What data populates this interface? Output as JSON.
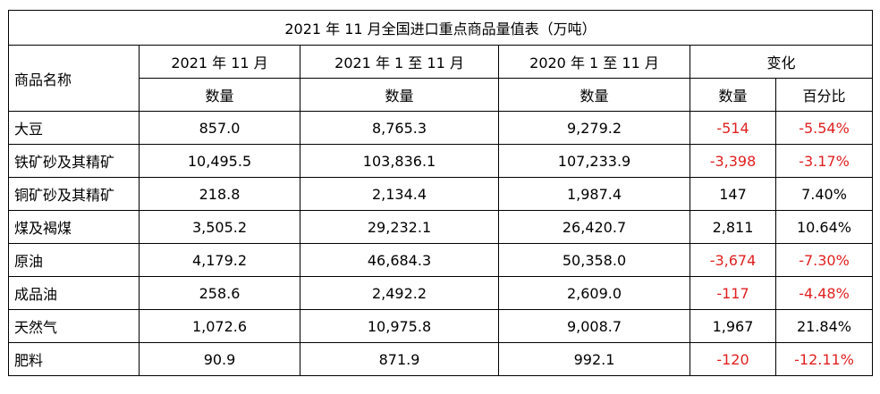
{
  "title": "2021 年 11 月全国进口重点商品量值表（万吨）",
  "header": {
    "name_col": "商品名称",
    "periods": [
      "2021 年 11 月",
      "2021 年 1 至 11 月",
      "2020 年 1 至 11 月"
    ],
    "change": "变化",
    "qty": "数量",
    "pct": "百分比"
  },
  "rows": [
    {
      "name": "大豆",
      "m2021_11": "857.0",
      "ytd2021": "8,765.3",
      "ytd2020": "9,279.2",
      "chg_qty": "-514",
      "chg_pct": "-5.54%",
      "negative": true
    },
    {
      "name": "铁矿砂及其精矿",
      "m2021_11": "10,495.5",
      "ytd2021": "103,836.1",
      "ytd2020": "107,233.9",
      "chg_qty": "-3,398",
      "chg_pct": "-3.17%",
      "negative": true
    },
    {
      "name": "铜矿砂及其精矿",
      "m2021_11": "218.8",
      "ytd2021": "2,134.4",
      "ytd2020": "1,987.4",
      "chg_qty": "147",
      "chg_pct": "7.40%",
      "negative": false
    },
    {
      "name": "煤及褐煤",
      "m2021_11": "3,505.2",
      "ytd2021": "29,232.1",
      "ytd2020": "26,420.7",
      "chg_qty": "2,811",
      "chg_pct": "10.64%",
      "negative": false
    },
    {
      "name": "原油",
      "m2021_11": "4,179.2",
      "ytd2021": "46,684.3",
      "ytd2020": "50,358.0",
      "chg_qty": "-3,674",
      "chg_pct": "-7.30%",
      "negative": true
    },
    {
      "name": "成品油",
      "m2021_11": "258.6",
      "ytd2021": "2,492.2",
      "ytd2020": "2,609.0",
      "chg_qty": "-117",
      "chg_pct": "-4.48%",
      "negative": true
    },
    {
      "name": "天然气",
      "m2021_11": "1,072.6",
      "ytd2021": "10,975.8",
      "ytd2020": "9,008.7",
      "chg_qty": "1,967",
      "chg_pct": "21.84%",
      "negative": false
    },
    {
      "name": "肥料",
      "m2021_11": "90.9",
      "ytd2021": "871.9",
      "ytd2020": "992.1",
      "chg_qty": "-120",
      "chg_pct": "-12.11%",
      "negative": true
    }
  ],
  "colors": {
    "negative": "#e02020",
    "text": "#000000",
    "border": "#000000"
  }
}
